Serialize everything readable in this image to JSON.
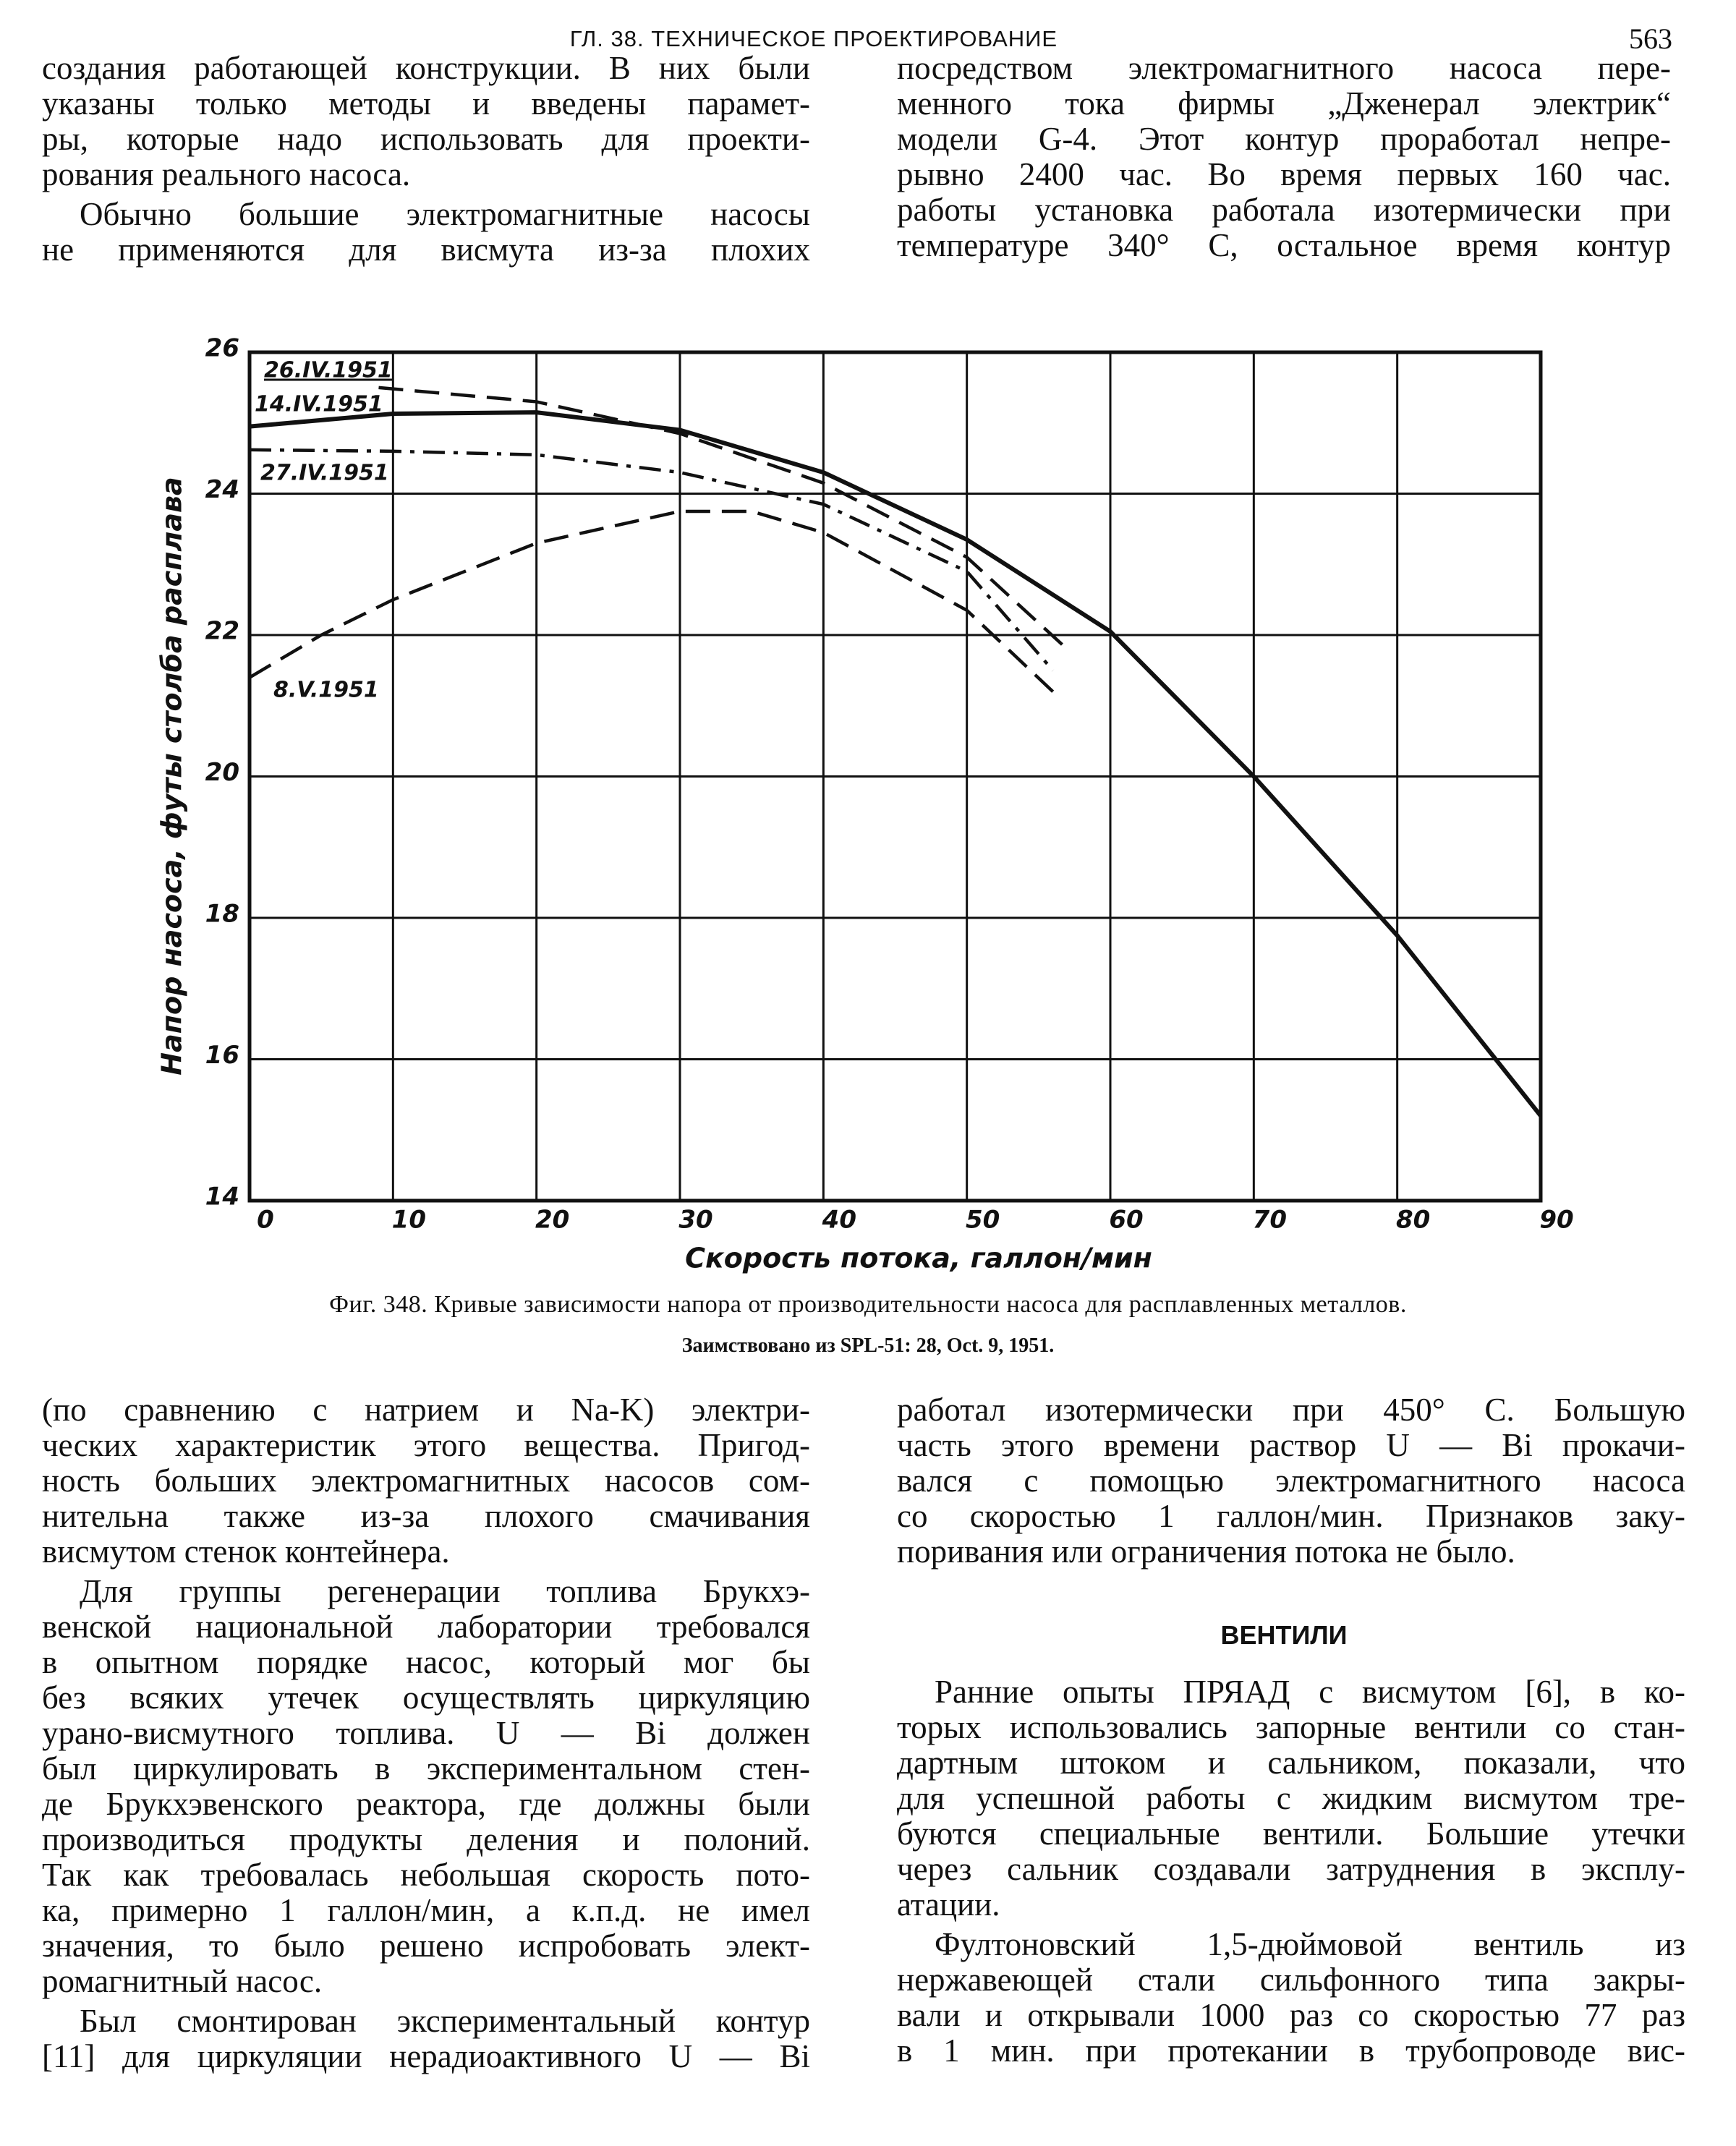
{
  "header": {
    "title": "ГЛ. 38. ТЕХНИЧЕСКОЕ ПРОЕКТИРОВАНИЕ",
    "page_number": "563"
  },
  "text_top": {
    "left": [
      [
        "создания работающей конструкции. В них были",
        "указаны только методы и введены парамет-",
        "ры, которые надо использовать для проекти-",
        "рования реального насоса."
      ],
      [
        "Обычно большие электромагнитные насосы",
        "не применяются для висмута из-за плохих"
      ]
    ],
    "right": [
      [
        "посредством электромагнитного насоса пере-",
        "менного тока фирмы „Дженерал электрик“",
        "модели G-4. Этот контур проработал непре-",
        "рывно 2400 час. Во время первых 160 час.",
        "работы установка работала изотермически при",
        "температуре 340° С, остальное время контур"
      ]
    ]
  },
  "chart_data": {
    "type": "line",
    "xlabel": "Скорость потока, галлон/мин",
    "ylabel": "Напор насоса, футы столба расплава",
    "xlim": [
      0,
      90
    ],
    "xticks": [
      0,
      10,
      20,
      30,
      40,
      50,
      60,
      70,
      80,
      90
    ],
    "ylim": [
      14,
      26
    ],
    "yticks": [
      14,
      16,
      18,
      20,
      22,
      24,
      26
    ],
    "grid": true,
    "series": [
      {
        "name": "26.IV.1951",
        "color": "#111111",
        "dash": "dashed",
        "x": [
          9,
          20,
          30,
          40,
          50,
          57
        ],
        "values": [
          25.5,
          25.3,
          24.85,
          24.15,
          23.1,
          21.8
        ]
      },
      {
        "name": "14.IV.1951",
        "color": "#111111",
        "dash": "solid",
        "x": [
          0,
          10,
          20,
          30,
          40,
          50,
          60,
          70,
          80,
          90
        ],
        "values": [
          24.95,
          25.13,
          25.15,
          24.9,
          24.3,
          23.35,
          22.05,
          20.0,
          17.75,
          15.2
        ]
      },
      {
        "name": "27.IV.1951",
        "color": "#111111",
        "dash": "dashdot",
        "x": [
          0,
          10,
          20,
          30,
          40,
          50,
          56
        ],
        "values": [
          24.62,
          24.6,
          24.55,
          24.3,
          23.85,
          22.9,
          21.5
        ]
      },
      {
        "name": "8.V.1951",
        "color": "#111111",
        "dash": "dashed",
        "x": [
          0,
          5,
          10,
          20,
          30,
          35,
          40,
          50,
          56
        ],
        "values": [
          21.4,
          22.0,
          22.5,
          23.3,
          23.75,
          23.75,
          23.45,
          22.35,
          21.2
        ]
      }
    ]
  },
  "figure": {
    "caption": "Фиг. 348. Кривые зависимости напора от производительности насоса для расплавленных металлов.",
    "source": "Заимствовано из SPL-51: 28, Oct. 9, 1951."
  },
  "text_bottom": {
    "left": [
      [
        "(по сравнению с натрием и Na-K) электри-",
        "ческих характеристик этого вещества. Пригод-",
        "ность больших электромагнитных насосов сом-",
        "нительна также из-за плохого смачивания",
        "висмутом стенок контейнера."
      ],
      [
        "Для группы регенерации топлива Брукхэ-",
        "венской национальной лаборатории требовался",
        "в опытном порядке насос, который мог бы",
        "без всяких утечек осуществлять циркуляцию",
        "урано-висмутного топлива. U — Bi должен",
        "был циркулировать в экспериментальном стен-",
        "де Брукхэвенского реактора, где должны были",
        "производиться продукты деления и полоний.",
        "Так как требовалась небольшая скорость пото-",
        "ка, примерно 1 галлон/мин, а к.п.д. не имел",
        "значения, то было решено испробовать элект-",
        "ромагнитный насос."
      ],
      [
        "Был смонтирован экспериментальный контур",
        "[11] для циркуляции нерадиоактивного U — Bi"
      ]
    ],
    "right": [
      [
        "работал изотермически при 450° С. Большую",
        "часть этого времени раствор U — Bi прокачи-",
        "вался с помощью электромагнитного насоса",
        "со скоростью 1 галлон/мин. Признаков заку-",
        "поривания или ограничения потока не было."
      ]
    ]
  },
  "section_heading": "ВЕНТИЛИ",
  "text_section": [
    [
      "Ранние опыты ПРЯАД с висмутом [6], в ко-",
      "торых использовались запорные вентили со стан-",
      "дартным штоком и сальником, показали, что",
      "для успешной работы с жидким висмутом тре-",
      "буются специальные вентили. Большие утечки",
      "через сальник создавали затруднения в эксплу-",
      "атации."
    ],
    [
      "Фултоновский 1,5-дюймовой вентиль из",
      "нержавеющей стали сильфонного типа закры-",
      "вали и открывали 1000 раз со скоростью 77 раз",
      "в 1 мин. при протекании в трубопроводе вис-"
    ]
  ]
}
